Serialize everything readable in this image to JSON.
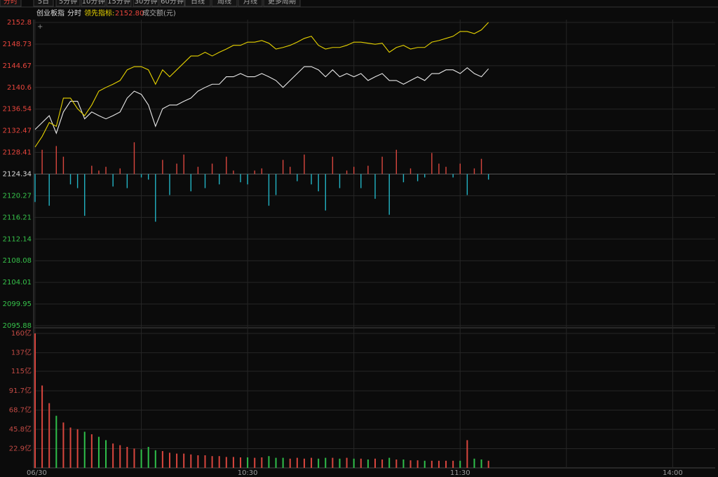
{
  "toolbar": [
    "分时",
    "5日",
    "5分钟",
    "10分钟",
    "15分钟",
    "30分钟",
    "60分钟",
    "日线",
    "周线",
    "月线",
    "更多周期"
  ],
  "header": {
    "name": "创业板指",
    "mode": "分时",
    "indicator_label": "领先指标:",
    "indicator_value": "2152.80",
    "volume_label": "成交额(元)"
  },
  "chart_data": {
    "type": "line",
    "x": [
      0,
      2,
      4,
      6,
      8,
      10,
      12,
      14,
      16,
      18,
      20,
      22,
      24,
      26,
      28,
      30,
      32,
      34,
      36,
      38,
      40,
      42,
      44,
      46,
      48,
      50,
      52,
      54,
      56,
      58,
      60,
      62,
      64,
      66,
      68,
      70,
      72,
      74,
      76,
      78,
      80,
      82,
      84,
      86,
      88,
      90,
      92,
      94,
      96,
      98,
      100,
      102,
      104,
      106,
      108,
      110,
      112,
      114,
      116,
      118,
      120,
      122,
      124,
      126,
      128
    ],
    "xlim": [
      0,
      192
    ],
    "xticks": [
      {
        "value": 0,
        "label": "06/30"
      },
      {
        "value": 60,
        "label": "10:30"
      },
      {
        "value": 120,
        "label": "11:30"
      },
      {
        "value": 180,
        "label": "14:00"
      }
    ],
    "minor_xticks": [
      30,
      90,
      150
    ],
    "ylim": [
      2095.88,
      2152.8
    ],
    "yticks": [
      2095.88,
      2099.95,
      2104.01,
      2108.08,
      2112.14,
      2116.21,
      2120.27,
      2124.34,
      2128.41,
      2132.47,
      2136.54,
      2140.6,
      2144.67,
      2148.73,
      2152.8
    ],
    "base": 2124.34,
    "grid": true,
    "series": [
      {
        "color": "#e8e8e8",
        "values": [
          2132.7,
          2134.0,
          2135.3,
          2132.0,
          2136.0,
          2138.0,
          2138.0,
          2134.7,
          2136.0,
          2135.3,
          2134.7,
          2135.3,
          2136.0,
          2138.6,
          2139.9,
          2139.3,
          2137.3,
          2133.3,
          2136.6,
          2137.3,
          2137.3,
          2138.0,
          2138.6,
          2139.9,
          2140.6,
          2141.2,
          2141.2,
          2142.6,
          2142.6,
          2143.2,
          2142.6,
          2142.6,
          2143.2,
          2142.6,
          2141.9,
          2140.6,
          2141.9,
          2143.2,
          2144.5,
          2144.5,
          2143.9,
          2142.6,
          2143.9,
          2142.6,
          2143.2,
          2142.6,
          2143.2,
          2141.9,
          2142.6,
          2143.2,
          2141.9,
          2141.9,
          2141.2,
          2141.9,
          2142.6,
          2141.9,
          2143.2,
          2143.2,
          2143.9,
          2143.9,
          2143.2,
          2144.3,
          2143.2,
          2142.6,
          2144.1
        ]
      },
      {
        "color": "#e6d200",
        "values": [
          2129.4,
          2131.4,
          2134.0,
          2133.3,
          2138.6,
          2138.6,
          2136.6,
          2135.3,
          2137.3,
          2139.9,
          2140.6,
          2141.2,
          2141.9,
          2143.9,
          2144.5,
          2144.5,
          2143.9,
          2141.2,
          2143.9,
          2142.6,
          2143.9,
          2145.2,
          2146.5,
          2146.5,
          2147.2,
          2146.5,
          2147.2,
          2147.8,
          2148.5,
          2148.5,
          2149.1,
          2149.1,
          2149.4,
          2148.9,
          2147.8,
          2148.1,
          2148.5,
          2149.1,
          2149.8,
          2150.2,
          2148.5,
          2147.8,
          2148.1,
          2148.1,
          2148.5,
          2149.1,
          2149.1,
          2148.9,
          2148.7,
          2148.9,
          2147.2,
          2148.1,
          2148.5,
          2147.8,
          2148.1,
          2148.1,
          2149.1,
          2149.4,
          2149.8,
          2150.2,
          2151.1,
          2151.1,
          2150.7,
          2151.4,
          2152.8
        ]
      }
    ],
    "bars": {
      "up_color": "#d9463e",
      "down_color": "#22b3c4",
      "values": [
        2119.1,
        2128.9,
        2118.4,
        2129.6,
        2127.6,
        2122.4,
        2121.7,
        2116.5,
        2125.9,
        2125.0,
        2125.7,
        2122.0,
        2125.4,
        2121.7,
        2130.3,
        2123.7,
        2123.3,
        2115.4,
        2127.0,
        2120.4,
        2126.3,
        2128.0,
        2121.1,
        2125.7,
        2121.7,
        2126.3,
        2122.4,
        2127.6,
        2125.0,
        2122.8,
        2122.4,
        2125.0,
        2125.4,
        2118.4,
        2120.4,
        2127.0,
        2125.7,
        2123.0,
        2128.0,
        2122.4,
        2121.1,
        2117.5,
        2127.6,
        2121.7,
        2125.0,
        2125.7,
        2121.7,
        2125.9,
        2119.7,
        2127.6,
        2116.7,
        2128.9,
        2122.8,
        2125.4,
        2123.0,
        2123.7,
        2128.3,
        2126.3,
        2125.7,
        2123.7,
        2126.3,
        2120.4,
        2125.4,
        2127.2,
        2123.3
      ]
    },
    "volume": {
      "type": "bar",
      "up_color": "#d9463e",
      "down_color": "#2fbf4a",
      "ylim": [
        0,
        160
      ],
      "yticks": [
        {
          "value": 22.9,
          "label": "22.9亿"
        },
        {
          "value": 45.8,
          "label": "45.8亿"
        },
        {
          "value": 68.7,
          "label": "68.7亿"
        },
        {
          "value": 91.7,
          "label": "91.7亿"
        },
        {
          "value": 115,
          "label": "115亿"
        },
        {
          "value": 137,
          "label": "137亿"
        },
        {
          "value": 160,
          "label": "160亿"
        }
      ],
      "values": [
        160,
        98,
        77,
        62,
        54,
        48,
        46,
        43,
        40,
        37,
        33,
        29,
        27,
        25,
        23,
        22,
        25,
        21,
        20,
        18,
        17,
        17,
        16,
        15,
        15,
        14,
        14,
        13,
        13,
        12.5,
        12.5,
        12,
        12.5,
        14,
        12,
        12,
        11,
        12,
        11,
        12,
        11,
        12,
        12,
        11,
        12,
        11,
        11,
        10,
        11,
        10,
        12,
        10,
        10,
        9,
        9,
        8.5,
        8.5,
        8.5,
        8.5,
        8.5,
        8.5,
        33,
        11,
        10,
        8.5
      ]
    }
  }
}
